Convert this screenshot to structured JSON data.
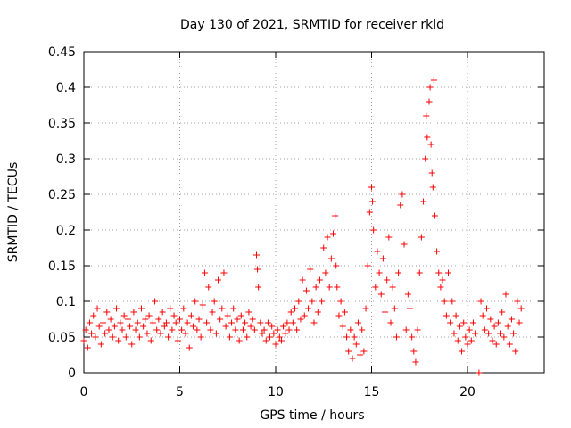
{
  "chart_data": {
    "type": "scatter",
    "title": "Day 130 of 2021, SRMTID for receiver rkld",
    "xlabel": "GPS time / hours",
    "ylabel": "SRMTID / TECUs",
    "xlim": [
      0,
      24
    ],
    "ylim": [
      0,
      0.45
    ],
    "xticks": [
      0,
      5,
      10,
      15,
      20
    ],
    "yticks": [
      0,
      0.05,
      0.1,
      0.15,
      0.2,
      0.25,
      0.3,
      0.35,
      0.4,
      0.45
    ],
    "xtick_labels": [
      "0",
      "5",
      "10",
      "15",
      "20"
    ],
    "ytick_labels": [
      "0",
      "0.05",
      "0.1",
      "0.15",
      "0.2",
      "0.25",
      "0.3",
      "0.35",
      "0.4",
      "0.45"
    ],
    "grid": true,
    "marker": "+",
    "color": "#ff0000",
    "series": [
      {
        "name": "SRMTID",
        "points": [
          [
            0.0,
            0.045
          ],
          [
            0.1,
            0.06
          ],
          [
            0.2,
            0.035
          ],
          [
            0.3,
            0.07
          ],
          [
            0.4,
            0.055
          ],
          [
            0.5,
            0.08
          ],
          [
            0.6,
            0.05
          ],
          [
            0.7,
            0.09
          ],
          [
            0.8,
            0.065
          ],
          [
            0.9,
            0.04
          ],
          [
            1.0,
            0.07
          ],
          [
            1.1,
            0.055
          ],
          [
            1.2,
            0.085
          ],
          [
            1.3,
            0.06
          ],
          [
            1.4,
            0.075
          ],
          [
            1.5,
            0.05
          ],
          [
            1.6,
            0.065
          ],
          [
            1.7,
            0.09
          ],
          [
            1.8,
            0.045
          ],
          [
            1.9,
            0.07
          ],
          [
            2.0,
            0.06
          ],
          [
            2.1,
            0.08
          ],
          [
            2.2,
            0.05
          ],
          [
            2.3,
            0.075
          ],
          [
            2.4,
            0.065
          ],
          [
            2.5,
            0.04
          ],
          [
            2.6,
            0.085
          ],
          [
            2.7,
            0.06
          ],
          [
            2.8,
            0.07
          ],
          [
            2.9,
            0.05
          ],
          [
            3.0,
            0.09
          ],
          [
            3.1,
            0.065
          ],
          [
            3.2,
            0.075
          ],
          [
            3.3,
            0.055
          ],
          [
            3.4,
            0.08
          ],
          [
            3.5,
            0.045
          ],
          [
            3.6,
            0.07
          ],
          [
            3.7,
            0.1
          ],
          [
            3.8,
            0.06
          ],
          [
            3.9,
            0.075
          ],
          [
            4.0,
            0.055
          ],
          [
            4.1,
            0.085
          ],
          [
            4.2,
            0.065
          ],
          [
            4.3,
            0.07
          ],
          [
            4.4,
            0.05
          ],
          [
            4.5,
            0.09
          ],
          [
            4.6,
            0.06
          ],
          [
            4.7,
            0.08
          ],
          [
            4.8,
            0.07
          ],
          [
            4.9,
            0.045
          ],
          [
            5.0,
            0.075
          ],
          [
            5.1,
            0.06
          ],
          [
            5.2,
            0.09
          ],
          [
            5.3,
            0.055
          ],
          [
            5.4,
            0.07
          ],
          [
            5.5,
            0.035
          ],
          [
            5.6,
            0.08
          ],
          [
            5.7,
            0.065
          ],
          [
            5.8,
            0.1
          ],
          [
            5.9,
            0.06
          ],
          [
            6.0,
            0.075
          ],
          [
            6.1,
            0.05
          ],
          [
            6.2,
            0.095
          ],
          [
            6.3,
            0.14
          ],
          [
            6.4,
            0.07
          ],
          [
            6.5,
            0.12
          ],
          [
            6.6,
            0.06
          ],
          [
            6.7,
            0.085
          ],
          [
            6.8,
            0.1
          ],
          [
            6.9,
            0.055
          ],
          [
            7.0,
            0.13
          ],
          [
            7.1,
            0.075
          ],
          [
            7.2,
            0.09
          ],
          [
            7.3,
            0.14
          ],
          [
            7.4,
            0.065
          ],
          [
            7.5,
            0.08
          ],
          [
            7.6,
            0.05
          ],
          [
            7.7,
            0.07
          ],
          [
            7.8,
            0.09
          ],
          [
            7.9,
            0.06
          ],
          [
            8.0,
            0.075
          ],
          [
            8.1,
            0.045
          ],
          [
            8.2,
            0.08
          ],
          [
            8.3,
            0.06
          ],
          [
            8.4,
            0.07
          ],
          [
            8.5,
            0.05
          ],
          [
            8.6,
            0.085
          ],
          [
            8.7,
            0.065
          ],
          [
            8.8,
            0.075
          ],
          [
            8.9,
            0.06
          ],
          [
            9.0,
            0.165
          ],
          [
            9.05,
            0.145
          ],
          [
            9.1,
            0.12
          ],
          [
            9.2,
            0.07
          ],
          [
            9.3,
            0.055
          ],
          [
            9.4,
            0.06
          ],
          [
            9.5,
            0.045
          ],
          [
            9.6,
            0.07
          ],
          [
            9.7,
            0.05
          ],
          [
            9.8,
            0.065
          ],
          [
            9.9,
            0.055
          ],
          [
            10.0,
            0.04
          ],
          [
            10.1,
            0.06
          ],
          [
            10.2,
            0.05
          ],
          [
            10.3,
            0.045
          ],
          [
            10.4,
            0.065
          ],
          [
            10.5,
            0.055
          ],
          [
            10.6,
            0.07
          ],
          [
            10.7,
            0.06
          ],
          [
            10.8,
            0.085
          ],
          [
            10.9,
            0.07
          ],
          [
            11.0,
            0.09
          ],
          [
            11.1,
            0.06
          ],
          [
            11.2,
            0.1
          ],
          [
            11.3,
            0.075
          ],
          [
            11.4,
            0.13
          ],
          [
            11.5,
            0.08
          ],
          [
            11.6,
            0.115
          ],
          [
            11.7,
            0.09
          ],
          [
            11.8,
            0.145
          ],
          [
            11.9,
            0.1
          ],
          [
            12.0,
            0.07
          ],
          [
            12.1,
            0.12
          ],
          [
            12.2,
            0.085
          ],
          [
            12.3,
            0.13
          ],
          [
            12.4,
            0.1
          ],
          [
            12.5,
            0.175
          ],
          [
            12.6,
            0.14
          ],
          [
            12.7,
            0.19
          ],
          [
            12.8,
            0.12
          ],
          [
            12.9,
            0.16
          ],
          [
            13.0,
            0.195
          ],
          [
            13.1,
            0.22
          ],
          [
            13.15,
            0.15
          ],
          [
            13.2,
            0.12
          ],
          [
            13.3,
            0.08
          ],
          [
            13.4,
            0.1
          ],
          [
            13.5,
            0.065
          ],
          [
            13.6,
            0.085
          ],
          [
            13.7,
            0.05
          ],
          [
            13.8,
            0.03
          ],
          [
            13.9,
            0.06
          ],
          [
            14.0,
            0.02
          ],
          [
            14.1,
            0.05
          ],
          [
            14.2,
            0.04
          ],
          [
            14.3,
            0.07
          ],
          [
            14.4,
            0.025
          ],
          [
            14.5,
            0.06
          ],
          [
            14.6,
            0.03
          ],
          [
            14.7,
            0.09
          ],
          [
            14.8,
            0.15
          ],
          [
            14.9,
            0.225
          ],
          [
            15.0,
            0.26
          ],
          [
            15.05,
            0.24
          ],
          [
            15.1,
            0.2
          ],
          [
            15.2,
            0.12
          ],
          [
            15.3,
            0.17
          ],
          [
            15.4,
            0.14
          ],
          [
            15.5,
            0.11
          ],
          [
            15.6,
            0.16
          ],
          [
            15.7,
            0.085
          ],
          [
            15.8,
            0.13
          ],
          [
            15.9,
            0.19
          ],
          [
            16.0,
            0.07
          ],
          [
            16.1,
            0.12
          ],
          [
            16.2,
            0.09
          ],
          [
            16.3,
            0.05
          ],
          [
            16.4,
            0.14
          ],
          [
            16.5,
            0.235
          ],
          [
            16.6,
            0.25
          ],
          [
            16.7,
            0.18
          ],
          [
            16.8,
            0.06
          ],
          [
            16.9,
            0.11
          ],
          [
            17.0,
            0.09
          ],
          [
            17.1,
            0.05
          ],
          [
            17.2,
            0.03
          ],
          [
            17.3,
            0.015
          ],
          [
            17.4,
            0.06
          ],
          [
            17.5,
            0.14
          ],
          [
            17.6,
            0.19
          ],
          [
            17.7,
            0.24
          ],
          [
            17.8,
            0.3
          ],
          [
            17.85,
            0.36
          ],
          [
            17.9,
            0.33
          ],
          [
            18.0,
            0.38
          ],
          [
            18.05,
            0.4
          ],
          [
            18.1,
            0.32
          ],
          [
            18.15,
            0.28
          ],
          [
            18.2,
            0.26
          ],
          [
            18.25,
            0.41
          ],
          [
            18.3,
            0.22
          ],
          [
            18.4,
            0.17
          ],
          [
            18.5,
            0.14
          ],
          [
            18.6,
            0.12
          ],
          [
            18.7,
            0.13
          ],
          [
            18.8,
            0.1
          ],
          [
            18.9,
            0.08
          ],
          [
            19.0,
            0.14
          ],
          [
            19.1,
            0.07
          ],
          [
            19.2,
            0.1
          ],
          [
            19.3,
            0.055
          ],
          [
            19.4,
            0.08
          ],
          [
            19.5,
            0.045
          ],
          [
            19.6,
            0.065
          ],
          [
            19.7,
            0.03
          ],
          [
            19.8,
            0.07
          ],
          [
            19.9,
            0.05
          ],
          [
            20.0,
            0.04
          ],
          [
            20.1,
            0.06
          ],
          [
            20.2,
            0.045
          ],
          [
            20.3,
            0.07
          ],
          [
            20.4,
            0.055
          ],
          [
            20.6,
            0.0
          ],
          [
            20.7,
            0.1
          ],
          [
            20.8,
            0.08
          ],
          [
            20.9,
            0.06
          ],
          [
            21.0,
            0.09
          ],
          [
            21.1,
            0.055
          ],
          [
            21.2,
            0.075
          ],
          [
            21.3,
            0.045
          ],
          [
            21.4,
            0.065
          ],
          [
            21.5,
            0.04
          ],
          [
            21.6,
            0.07
          ],
          [
            21.7,
            0.055
          ],
          [
            21.8,
            0.085
          ],
          [
            21.9,
            0.05
          ],
          [
            22.0,
            0.11
          ],
          [
            22.1,
            0.065
          ],
          [
            22.2,
            0.04
          ],
          [
            22.3,
            0.075
          ],
          [
            22.4,
            0.055
          ],
          [
            22.5,
            0.03
          ],
          [
            22.6,
            0.1
          ],
          [
            22.7,
            0.07
          ],
          [
            22.8,
            0.09
          ]
        ]
      }
    ]
  }
}
